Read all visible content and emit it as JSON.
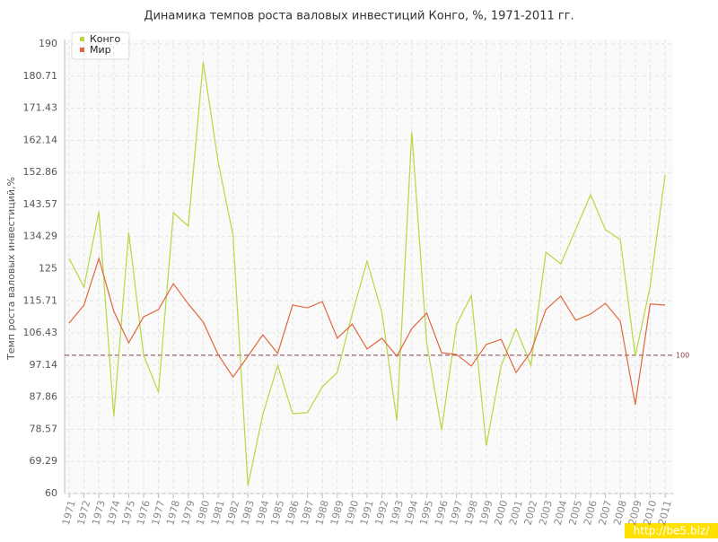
{
  "chart_data": {
    "type": "line",
    "title": "Динамика темпов роста валовых инвестиций Конго, %, 1971-2011 гг.",
    "y_label": "Темп роста валовых инвестиций,%",
    "categories": [
      "1971",
      "1972",
      "1973",
      "1974",
      "1975",
      "1976",
      "1977",
      "1978",
      "1979",
      "1980",
      "1981",
      "1982",
      "1983",
      "1984",
      "1985",
      "1986",
      "1987",
      "1988",
      "1989",
      "1990",
      "1991",
      "1992",
      "1993",
      "1994",
      "1995",
      "1996",
      "1997",
      "1998",
      "1999",
      "2000",
      "2001",
      "2002",
      "2003",
      "2004",
      "2005",
      "2006",
      "2007",
      "2008",
      "2009",
      "2010",
      "2011"
    ],
    "series": [
      {
        "name": "Конго",
        "color": "#b5d93f",
        "values": [
          128,
          119.7,
          141.5,
          82.3,
          135.5,
          100,
          89.3,
          141.2,
          137.3,
          184.8,
          156,
          134.7,
          62.3,
          82.8,
          97.1,
          83.1,
          83.4,
          90.9,
          95,
          111.9,
          127.2,
          112.2,
          81,
          164.6,
          103.6,
          78.4,
          108.8,
          117.3,
          73.8,
          96.9,
          107.7,
          97.1,
          129.8,
          126.4,
          136.3,
          146.4,
          136.3,
          133.4,
          99.7,
          119.9,
          152.1
        ]
      },
      {
        "name": "Мир",
        "color": "#e0663c",
        "values": [
          109.3,
          114.5,
          128,
          112.7,
          103.6,
          111.1,
          113.2,
          120.7,
          114.8,
          109.6,
          100.2,
          93.7,
          99.7,
          105.9,
          100.5,
          114.5,
          113.7,
          115.5,
          104.9,
          109,
          101.8,
          104.9,
          99.7,
          107.7,
          112.2,
          100.7,
          100.2,
          96.9,
          103.1,
          104.6,
          95,
          101,
          113.2,
          117.1,
          110.1,
          111.9,
          115,
          109.8,
          85.7,
          114.8,
          114.5
        ]
      }
    ],
    "ylim": [
      60,
      190
    ],
    "yticks": [
      60,
      69.29,
      78.57,
      87.86,
      97.14,
      106.43,
      115.71,
      125,
      134.29,
      143.57,
      152.86,
      162.14,
      171.43,
      180.71,
      190
    ],
    "grid": true,
    "reference_line": 100,
    "legend": "top-left",
    "watermark": "http://be5.biz/"
  }
}
